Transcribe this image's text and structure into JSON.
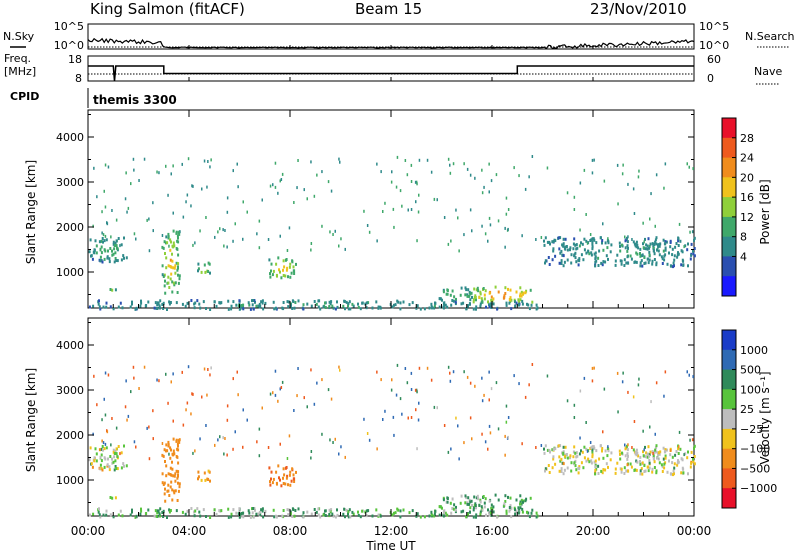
{
  "header": {
    "station": "King Salmon (fitACF)",
    "beam": "Beam 15",
    "date": "23/Nov/2010"
  },
  "noise_panel": {
    "left_label": "N.Sky",
    "right_label": "N.Search",
    "tick_top": "10^5",
    "tick_bottom": "10^0"
  },
  "freq_panel": {
    "left_label_line1": "Freq.",
    "left_label_line2": "[MHz]",
    "left_ticks": [
      "18",
      "8"
    ],
    "right_label": "Nave",
    "right_ticks": [
      "60",
      "0"
    ]
  },
  "cpid_panel": {
    "label": "CPID",
    "program": "themis 3300"
  },
  "power_colorbar": {
    "label": "Power [dB]",
    "ticks": [
      "28",
      "24",
      "20",
      "16",
      "12",
      "8",
      "4"
    ],
    "colors": [
      "#e8102a",
      "#ee5a1e",
      "#f08c1c",
      "#f0c21c",
      "#8fcf3a",
      "#3fa86a",
      "#2f8a8a",
      "#2a4fb0",
      "#1a1aff"
    ]
  },
  "velocity_colorbar": {
    "label": "Velocity [m s⁻¹]",
    "ticks": [
      "1000",
      "500",
      "100",
      "25",
      "−25",
      "−100",
      "−500",
      "−1000"
    ],
    "colors": [
      "#1a3cc8",
      "#2f6ab4",
      "#2f8a5a",
      "#58c43c",
      "#bdbdbd",
      "#f0c21c",
      "#f08c1c",
      "#ee5a1e",
      "#e8102a"
    ]
  },
  "chart_data": [
    {
      "type": "heatmap",
      "name": "Power",
      "xlabel": "",
      "ylabel": "Slant Range [km]",
      "x_ticks": [
        "00:00",
        "04:00",
        "08:00",
        "12:00",
        "16:00",
        "20:00",
        "00:00"
      ],
      "xlim_hours": [
        0,
        24
      ],
      "y_ticks": [
        1000,
        2000,
        3000,
        4000
      ],
      "ylim": [
        200,
        4600
      ],
      "features": [
        {
          "t0": 0.0,
          "t1": 1.6,
          "r0": 1250,
          "r1": 1800,
          "power": 8
        },
        {
          "t0": 0.8,
          "t1": 1.1,
          "r0": 550,
          "r1": 700,
          "power": 10
        },
        {
          "t0": 2.9,
          "t1": 3.6,
          "r0": 550,
          "r1": 1950,
          "power": 16
        },
        {
          "t0": 4.3,
          "t1": 4.8,
          "r0": 950,
          "r1": 1250,
          "power": 14
        },
        {
          "t0": 7.1,
          "t1": 8.2,
          "r0": 900,
          "r1": 1350,
          "power": 16
        },
        {
          "t0": 13.8,
          "t1": 15.2,
          "r0": 400,
          "r1": 700,
          "power": 10
        },
        {
          "t0": 15.2,
          "t1": 17.6,
          "r0": 350,
          "r1": 700,
          "power": 22
        },
        {
          "t0": 18.0,
          "t1": 24.0,
          "r0": 1150,
          "r1": 1800,
          "power": 6
        },
        {
          "t0": 0.0,
          "t1": 17.8,
          "r0": 200,
          "r1": 400,
          "power": 6
        }
      ]
    },
    {
      "type": "heatmap",
      "name": "Velocity",
      "xlabel": "Time UT",
      "ylabel": "Slant Range [km]",
      "x_ticks": [
        "00:00",
        "04:00",
        "08:00",
        "12:00",
        "16:00",
        "20:00",
        "00:00"
      ],
      "xlim_hours": [
        0,
        24
      ],
      "y_ticks": [
        1000,
        2000,
        3000,
        4000
      ],
      "ylim": [
        200,
        4600
      ],
      "features": [
        {
          "t0": 0.0,
          "t1": 1.6,
          "r0": 1250,
          "r1": 1800,
          "velocity": 0
        },
        {
          "t0": 0.8,
          "t1": 1.1,
          "r0": 550,
          "r1": 700,
          "velocity": 0
        },
        {
          "t0": 2.9,
          "t1": 3.6,
          "r0": 550,
          "r1": 1950,
          "velocity": -150
        },
        {
          "t0": 4.3,
          "t1": 4.8,
          "r0": 950,
          "r1": 1250,
          "velocity": -80
        },
        {
          "t0": 7.1,
          "t1": 8.2,
          "r0": 900,
          "r1": 1350,
          "velocity": -300
        },
        {
          "t0": 13.8,
          "t1": 15.2,
          "r0": 400,
          "r1": 700,
          "velocity": 60
        },
        {
          "t0": 15.2,
          "t1": 17.6,
          "r0": 350,
          "r1": 700,
          "velocity": 60
        },
        {
          "t0": 18.0,
          "t1": 24.0,
          "r0": 1150,
          "r1": 1800,
          "velocity": 0
        },
        {
          "t0": 0.0,
          "t1": 17.8,
          "r0": 200,
          "r1": 400,
          "velocity": 50
        }
      ]
    },
    {
      "type": "line",
      "name": "Frequency",
      "ylabel": "Freq. [MHz]",
      "ylim": [
        8,
        18
      ],
      "x_hours": [
        0,
        1.0,
        1.05,
        1.1,
        3.0,
        3.0,
        17.0,
        17.0,
        24.0
      ],
      "values": [
        14,
        14,
        8,
        14,
        14,
        11,
        11,
        14,
        14
      ]
    },
    {
      "type": "line",
      "name": "Noise",
      "ylabel": "N.Sky",
      "ylim_log10": [
        0,
        5
      ],
      "x_hours": [
        0,
        2.9,
        3.0,
        18.0,
        24.0
      ],
      "values_log10": [
        1.8,
        1.3,
        0.3,
        0.3,
        1.5
      ]
    }
  ]
}
